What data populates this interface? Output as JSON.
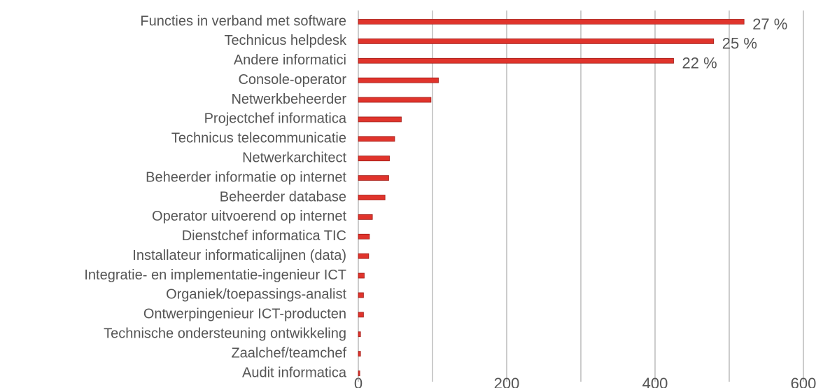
{
  "chart_data": {
    "type": "hbar",
    "categories": [
      "Functies in verband met software",
      "Technicus helpdesk",
      "Andere informatici",
      "Console-operator",
      "Netwerkbeheerder",
      "Projectchef informatica",
      "Technicus telecommunicatie",
      "Netwerkarchitect",
      "Beheerder informatie op internet",
      "Beheerder database",
      "Operator uitvoerend op internet",
      "Dienstchef informatica TIC",
      "Installateur informaticalijnen (data)",
      "Integratie- en implementatie-ingenieur ICT",
      "Organiek/toepassings-analist",
      "Ontwerpingenieur ICT-producten",
      "Technische ondersteuning ontwikkeling",
      "Zaalchef/teamchef",
      "Audit informatica"
    ],
    "values": [
      520,
      479,
      425,
      108,
      98,
      58,
      49,
      42,
      41,
      36,
      19,
      15,
      14,
      8,
      7,
      7,
      3,
      3,
      2
    ],
    "annotations": [
      {
        "index": 0,
        "text": "27 %"
      },
      {
        "index": 1,
        "text": "25 %"
      },
      {
        "index": 2,
        "text": "22 %"
      }
    ],
    "color": "#e0342c",
    "xlim": [
      0,
      600
    ],
    "xticks": [
      0,
      200,
      400,
      600
    ],
    "minor_xticks": [
      100,
      300,
      500
    ],
    "grid": true
  }
}
